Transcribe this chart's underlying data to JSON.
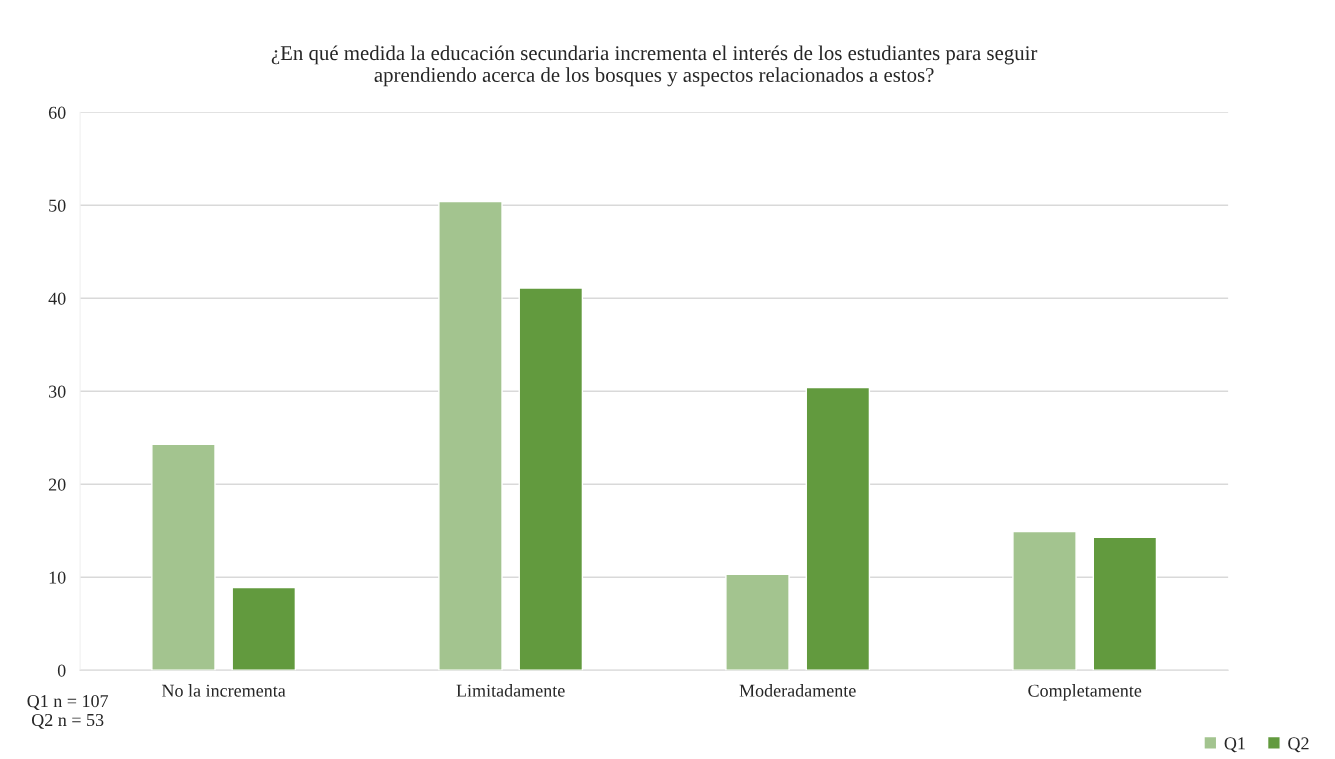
{
  "chart_data": {
    "type": "bar",
    "title": "¿En qué medida la educación secundaria incrementa el interés de los estudiantes para seguir\naprendiendo acerca de los bosques y aspectos relacionados a estos?",
    "categories": [
      "No la incrementa",
      "Limitadamente",
      "Moderadamente",
      "Completamente"
    ],
    "series": [
      {
        "name": "Q1",
        "color": "#a3c48f",
        "values": [
          24.3,
          50.4,
          10.3,
          14.9
        ]
      },
      {
        "name": "Q2",
        "color": "#629a3e",
        "values": [
          8.9,
          41.1,
          30.4,
          14.3
        ]
      }
    ],
    "ylim": [
      0,
      60
    ],
    "yticks": [
      0,
      10,
      20,
      30,
      40,
      50,
      60
    ],
    "grid": "y",
    "legend": "bottom right",
    "annotations": [
      "Q1 n = 107\n Q2 n = 53"
    ]
  }
}
